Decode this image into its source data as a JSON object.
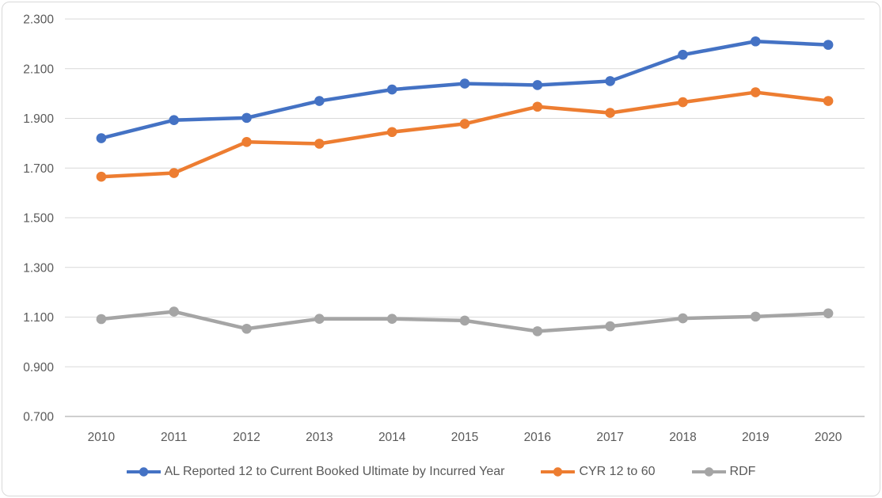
{
  "chart": {
    "background": "#FFFFFF",
    "border_color": "#D9D9D9",
    "gridline_color": "#D9D9D9",
    "axis_line_color": "#BFBFBF",
    "tick_label_color": "#595959",
    "legend_text_color": "#595959"
  },
  "chart_data": {
    "type": "line",
    "title": "",
    "xlabel": "",
    "ylabel": "",
    "categories": [
      "2010",
      "2011",
      "2012",
      "2013",
      "2014",
      "2015",
      "2016",
      "2017",
      "2018",
      "2019",
      "2020"
    ],
    "series": [
      {
        "name": "AL Reported 12 to Current Booked Ultimate by Incurred Year",
        "color": "#4472C4",
        "values": [
          1.82,
          1.893,
          1.902,
          1.97,
          2.016,
          2.04,
          2.034,
          2.05,
          2.156,
          2.21,
          2.196
        ]
      },
      {
        "name": "CYR 12 to 60",
        "color": "#ED7D31",
        "values": [
          1.665,
          1.68,
          1.805,
          1.798,
          1.845,
          1.878,
          1.947,
          1.922,
          1.965,
          2.005,
          1.97
        ]
      },
      {
        "name": "RDF",
        "color": "#A5A5A5",
        "values": [
          1.092,
          1.122,
          1.053,
          1.093,
          1.093,
          1.086,
          1.043,
          1.063,
          1.095,
          1.102,
          1.115
        ]
      }
    ],
    "ylim": [
      0.7,
      2.3
    ],
    "ytick_step": 0.2,
    "ytick_labels": [
      "2.300",
      "2.100",
      "1.900",
      "1.700",
      "1.500",
      "1.300",
      "1.100",
      "0.900",
      "0.700"
    ],
    "grid": true,
    "marker": "circle",
    "legend_position": "bottom"
  }
}
